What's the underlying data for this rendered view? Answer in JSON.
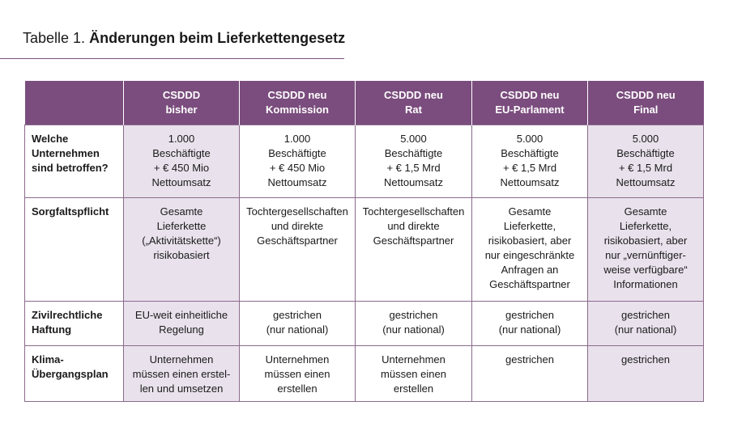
{
  "title_prefix": "Tabelle 1.",
  "title": "Änderungen beim Lieferkettengesetz",
  "table": {
    "headers": [
      "CSDDD\nbisher",
      "CSDDD neu\nKommission",
      "CSDDD neu\nRat",
      "CSDDD neu\nEU-Parlament",
      "CSDDD neu\nFinal"
    ],
    "rows": [
      {
        "label": "Welche\nUnternehmen\nsind betroffen?",
        "cells": [
          "1.000\nBeschäftigte\n+ € 450 Mio\nNettoumsatz",
          "1.000\nBeschäftigte\n+ € 450 Mio\nNettoumsatz",
          "5.000\nBeschäftigte\n+ € 1,5 Mrd\nNettoumsatz",
          "5.000\nBeschäftigte\n+ € 1,5 Mrd\nNettoumsatz",
          "5.000\nBeschäftigte\n+ € 1,5 Mrd\nNettoumsatz"
        ]
      },
      {
        "label": "Sorgfaltspflicht",
        "cells": [
          "Gesamte\nLieferkette\n(„Aktivitätskette“)\nrisikobasiert",
          "Tochtergesellschaften\nund direkte\nGeschäftspartner",
          "Tochtergesellschaften\nund direkte\nGeschäftspartner",
          "Gesamte\nLieferkette,\nrisikobasiert, aber\nnur eingeschränkte\nAnfragen an\nGeschäftspartner",
          "Gesamte\nLieferkette,\nrisikobasiert, aber\nnur „vernünftiger-\nweise verfügbare“\nInformationen"
        ]
      },
      {
        "label": "Zivilrechtliche\nHaftung",
        "cells": [
          "EU-weit einheitliche\nRegelung",
          "gestrichen\n(nur national)",
          "gestrichen\n(nur national)",
          "gestrichen\n(nur national)",
          "gestrichen\n(nur national)"
        ]
      },
      {
        "label": "Klima-\nÜbergangsplan",
        "cells": [
          "Unternehmen\nmüssen einen erstel-\nlen und umsetzen",
          "Unternehmen\nmüssen einen\nerstellen",
          "Unternehmen\nmüssen einen\nerstellen",
          "gestrichen",
          "gestrichen"
        ]
      }
    ]
  }
}
